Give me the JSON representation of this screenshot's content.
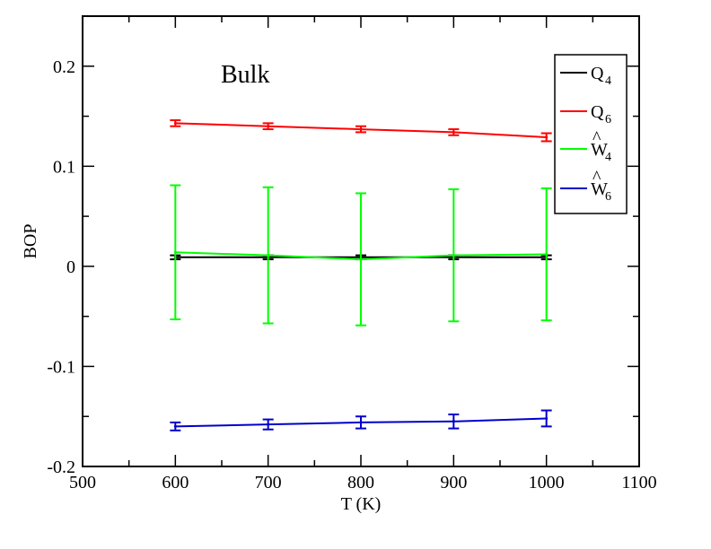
{
  "chart_data": {
    "type": "line",
    "xlabel": "T (K)",
    "ylabel": "BOP",
    "xlim": [
      500,
      1100
    ],
    "ylim": [
      -0.2,
      0.25
    ],
    "x_ticks": [
      500,
      600,
      700,
      800,
      900,
      1000,
      1100
    ],
    "x_tick_labels": [
      "500",
      "600",
      "700",
      "800",
      "900",
      "1000",
      "1100"
    ],
    "y_ticks": [
      -0.2,
      -0.1,
      0,
      0.1,
      0.2
    ],
    "y_tick_labels": [
      "-0.2",
      "-0.1",
      "0",
      "0.1",
      "0.2"
    ],
    "annotation": "Bulk",
    "grid": false,
    "legend_position": "top-right",
    "x": [
      600,
      700,
      800,
      900,
      1000
    ],
    "series": [
      {
        "name": "Q4",
        "label_main": "Q",
        "label_sub": "4",
        "hat": false,
        "color": "#000000",
        "values": [
          0.009,
          0.009,
          0.009,
          0.009,
          0.009
        ],
        "errors": [
          0.002,
          0.002,
          0.002,
          0.002,
          0.002
        ]
      },
      {
        "name": "Q6",
        "label_main": "Q",
        "label_sub": "6",
        "hat": false,
        "color": "#ff0000",
        "values": [
          0.143,
          0.14,
          0.137,
          0.134,
          0.129
        ],
        "errors": [
          0.003,
          0.003,
          0.003,
          0.003,
          0.004
        ]
      },
      {
        "name": "Ŵ4",
        "label_main": "W",
        "label_sub": "4",
        "hat": true,
        "color": "#00ff00",
        "values": [
          0.014,
          0.011,
          0.007,
          0.011,
          0.012
        ],
        "errors": [
          0.067,
          0.068,
          0.066,
          0.066,
          0.066
        ]
      },
      {
        "name": "Ŵ6",
        "label_main": "W",
        "label_sub": "6",
        "hat": true,
        "color": "#0000cc",
        "values": [
          -0.16,
          -0.158,
          -0.156,
          -0.155,
          -0.152
        ],
        "errors": [
          0.004,
          0.005,
          0.006,
          0.007,
          0.008
        ]
      }
    ]
  }
}
